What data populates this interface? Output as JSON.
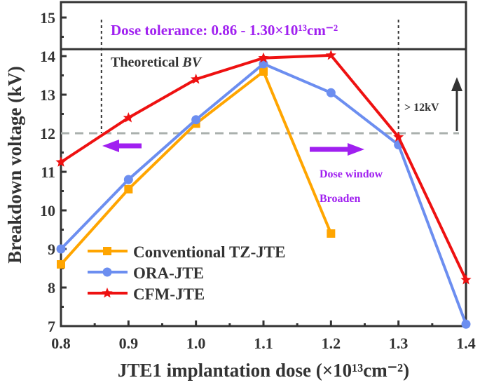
{
  "chart_data": {
    "type": "line",
    "xlabel": "JTE1 implantation dose (×10¹³cm⁻²)",
    "ylabel": "Breakdown voltage (kV)",
    "xlim": [
      0.8,
      1.4
    ],
    "ylim": [
      7,
      15.5
    ],
    "xticks": [
      "0.8",
      "0.9",
      "1.0",
      "1.1",
      "1.2",
      "1.3",
      "1.4"
    ],
    "yticks": [
      "7",
      "8",
      "9",
      "10",
      "11",
      "12",
      "13",
      "14",
      "15"
    ],
    "legend_position": "bottom-left",
    "series": [
      {
        "name": "Conventional TZ-JTE",
        "color": "#FFA500",
        "marker": "square",
        "x": [
          0.8,
          0.9,
          1.0,
          1.1,
          1.2
        ],
        "y": [
          8.6,
          10.55,
          12.25,
          13.6,
          9.4
        ]
      },
      {
        "name": "ORA-JTE",
        "color": "#6C8EF0",
        "marker": "circle",
        "x": [
          0.8,
          0.9,
          1.0,
          1.1,
          1.2,
          1.3,
          1.4
        ],
        "y": [
          9.0,
          10.8,
          12.35,
          13.8,
          13.05,
          11.7,
          7.05
        ]
      },
      {
        "name": "CFM-JTE",
        "color": "#EE1111",
        "marker": "star",
        "x": [
          0.8,
          0.9,
          1.0,
          1.1,
          1.2,
          1.3,
          1.4
        ],
        "y": [
          11.25,
          12.4,
          13.4,
          13.95,
          14.02,
          11.9,
          8.2
        ]
      }
    ],
    "reference_lines": {
      "theoretical_bv": 14.18,
      "threshold": 12,
      "dose_bounds": [
        0.86,
        1.3
      ]
    },
    "annotations": {
      "tolerance": "Dose tolerance: 0.86 - 1.30×10¹³cm⁻²",
      "theoretical": "Theoretical ",
      "theoretical_italic": "BV",
      "threshold": "> 12kV",
      "window1": "Dose window",
      "window2": "Broaden"
    },
    "annotation_color": "#A020F0"
  }
}
